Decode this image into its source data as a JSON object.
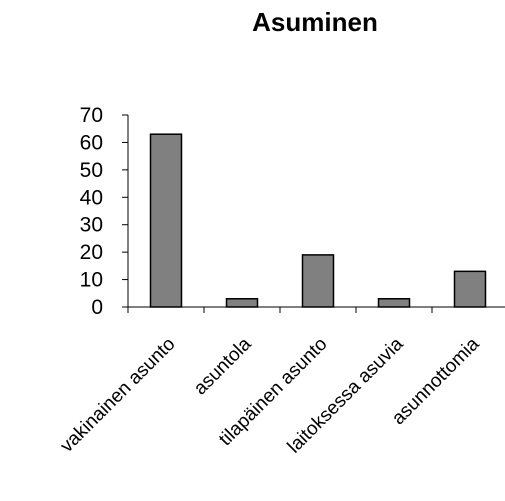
{
  "chart_data": {
    "type": "bar",
    "title": "Asuminen",
    "categories": [
      "vakinainen asunto",
      "asuntola",
      "tilapäinen asunto",
      "laitoksessa asuvia",
      "asunnottomia"
    ],
    "values": [
      63,
      3,
      19,
      3,
      13
    ],
    "xlabel": "",
    "ylabel": "",
    "ylim": [
      0,
      70
    ],
    "yticks": [
      "0",
      "10",
      "20",
      "30",
      "40",
      "50",
      "60",
      "70"
    ],
    "grid": false,
    "legend": "none",
    "bar_color": "#808080",
    "bar_stroke": "#000000"
  }
}
